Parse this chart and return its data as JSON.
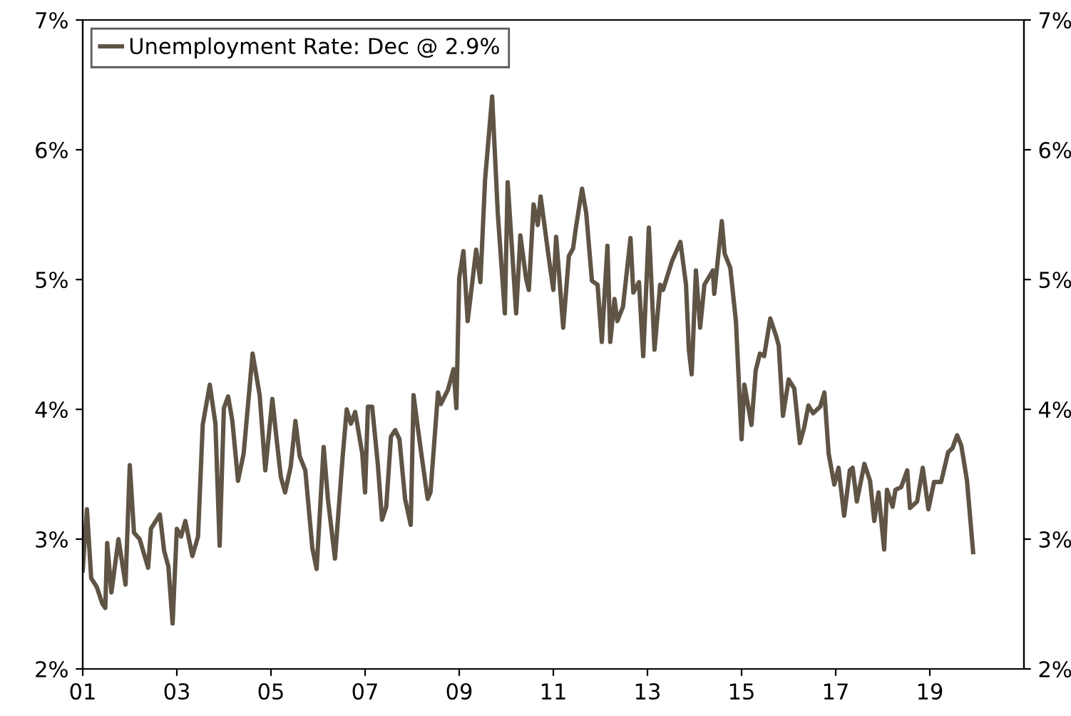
{
  "chart_data": {
    "type": "line",
    "series": [
      {
        "name": "Unemployment Rate: Dec @ 2.9%",
        "color": "#5f5445",
        "x": [
          2001.0,
          2001.09,
          2001.18,
          2001.3,
          2001.42,
          2001.48,
          2001.52,
          2001.61,
          2001.76,
          2001.91,
          2002.0,
          2002.09,
          2002.21,
          2002.39,
          2002.45,
          2002.64,
          2002.73,
          2002.82,
          2002.91,
          2003.0,
          2003.09,
          2003.18,
          2003.33,
          2003.45,
          2003.55,
          2003.7,
          2003.82,
          2003.91,
          2004.0,
          2004.09,
          2004.18,
          2004.3,
          2004.42,
          2004.61,
          2004.76,
          2004.88,
          2005.03,
          2005.12,
          2005.21,
          2005.3,
          2005.42,
          2005.52,
          2005.61,
          2005.73,
          2005.88,
          2005.97,
          2006.12,
          2006.21,
          2006.36,
          2006.52,
          2006.61,
          2006.7,
          2006.79,
          2006.94,
          2007.0,
          2007.06,
          2007.15,
          2007.27,
          2007.36,
          2007.45,
          2007.55,
          2007.64,
          2007.73,
          2007.85,
          2007.97,
          2008.03,
          2008.12,
          2008.21,
          2008.33,
          2008.39,
          2008.55,
          2008.61,
          2008.76,
          2008.88,
          2008.94,
          2009.0,
          2009.09,
          2009.18,
          2009.36,
          2009.45,
          2009.55,
          2009.7,
          2009.82,
          2009.97,
          2010.03,
          2010.21,
          2010.3,
          2010.42,
          2010.48,
          2010.58,
          2010.67,
          2010.73,
          2010.91,
          2011.0,
          2011.06,
          2011.21,
          2011.33,
          2011.42,
          2011.48,
          2011.61,
          2011.7,
          2011.82,
          2011.94,
          2012.03,
          2012.15,
          2012.21,
          2012.3,
          2012.36,
          2012.48,
          2012.64,
          2012.7,
          2012.82,
          2012.91,
          2013.03,
          2013.15,
          2013.27,
          2013.33,
          2013.52,
          2013.7,
          2013.82,
          2013.88,
          2013.94,
          2014.03,
          2014.12,
          2014.21,
          2014.39,
          2014.42,
          2014.58,
          2014.64,
          2014.76,
          2014.88,
          2015.0,
          2015.06,
          2015.21,
          2015.3,
          2015.39,
          2015.48,
          2015.61,
          2015.73,
          2015.79,
          2015.88,
          2016.0,
          2016.12,
          2016.24,
          2016.33,
          2016.42,
          2016.52,
          2016.67,
          2016.76,
          2016.85,
          2016.97,
          2017.06,
          2017.18,
          2017.3,
          2017.36,
          2017.45,
          2017.61,
          2017.73,
          2017.82,
          2017.91,
          2018.03,
          2018.09,
          2018.21,
          2018.27,
          2018.39,
          2018.52,
          2018.58,
          2018.73,
          2018.85,
          2018.97,
          2019.09,
          2019.24,
          2019.39,
          2019.48,
          2019.58,
          2019.67,
          2019.79,
          2019.92
        ],
        "values": [
          2.76,
          3.23,
          2.7,
          2.63,
          2.5,
          2.47,
          2.97,
          2.59,
          3.0,
          2.65,
          3.57,
          3.05,
          3.0,
          2.78,
          3.08,
          3.19,
          2.91,
          2.79,
          2.35,
          3.08,
          3.02,
          3.14,
          2.87,
          3.02,
          3.88,
          4.19,
          3.89,
          2.95,
          4.01,
          4.1,
          3.91,
          3.45,
          3.66,
          4.43,
          4.11,
          3.53,
          4.08,
          3.77,
          3.48,
          3.36,
          3.56,
          3.91,
          3.64,
          3.53,
          2.93,
          2.77,
          3.71,
          3.31,
          2.85,
          3.62,
          4.0,
          3.89,
          3.98,
          3.66,
          3.36,
          4.02,
          4.02,
          3.58,
          3.15,
          3.25,
          3.79,
          3.84,
          3.77,
          3.31,
          3.11,
          4.11,
          3.86,
          3.62,
          3.31,
          3.36,
          4.13,
          4.04,
          4.15,
          4.31,
          4.01,
          5.01,
          5.22,
          4.68,
          5.23,
          4.98,
          5.77,
          6.41,
          5.51,
          4.74,
          5.75,
          4.74,
          5.34,
          5.01,
          4.92,
          5.58,
          5.42,
          5.64,
          5.15,
          4.92,
          5.33,
          4.63,
          5.18,
          5.24,
          5.4,
          5.7,
          5.51,
          4.99,
          4.96,
          4.52,
          5.26,
          4.52,
          4.85,
          4.68,
          4.79,
          5.32,
          4.9,
          4.98,
          4.41,
          5.4,
          4.46,
          4.96,
          4.92,
          5.14,
          5.29,
          4.96,
          4.46,
          4.27,
          5.07,
          4.63,
          4.96,
          5.07,
          4.89,
          5.45,
          5.2,
          5.09,
          4.68,
          3.77,
          4.19,
          3.88,
          4.3,
          4.43,
          4.41,
          4.7,
          4.57,
          4.49,
          3.95,
          4.23,
          4.16,
          3.74,
          3.86,
          4.03,
          3.97,
          4.02,
          4.13,
          3.66,
          3.42,
          3.55,
          3.18,
          3.53,
          3.55,
          3.29,
          3.58,
          3.45,
          3.14,
          3.36,
          2.92,
          3.38,
          3.25,
          3.38,
          3.4,
          3.53,
          3.24,
          3.29,
          3.55,
          3.23,
          3.44,
          3.44,
          3.67,
          3.7,
          3.8,
          3.72,
          3.45,
          2.9
        ]
      }
    ],
    "xlim": [
      2001,
      2021
    ],
    "xticks": [
      {
        "value": 2001,
        "label": "01"
      },
      {
        "value": 2003,
        "label": "03"
      },
      {
        "value": 2005,
        "label": "05"
      },
      {
        "value": 2007,
        "label": "07"
      },
      {
        "value": 2009,
        "label": "09"
      },
      {
        "value": 2011,
        "label": "11"
      },
      {
        "value": 2013,
        "label": "13"
      },
      {
        "value": 2015,
        "label": "15"
      },
      {
        "value": 2017,
        "label": "17"
      },
      {
        "value": 2019,
        "label": "19"
      }
    ],
    "ylim": [
      2,
      7
    ],
    "yticks": [
      {
        "value": 2,
        "label": "2%"
      },
      {
        "value": 3,
        "label": "3%"
      },
      {
        "value": 4,
        "label": "4%"
      },
      {
        "value": 5,
        "label": "5%"
      },
      {
        "value": 6,
        "label": "6%"
      },
      {
        "value": 7,
        "label": "7%"
      }
    ],
    "y2lim": [
      2,
      7
    ],
    "y2ticks": [
      {
        "value": 2,
        "label": "2%"
      },
      {
        "value": 3,
        "label": "3%"
      },
      {
        "value": 4,
        "label": "4%"
      },
      {
        "value": 5,
        "label": "5%"
      },
      {
        "value": 6,
        "label": "6%"
      },
      {
        "value": 7,
        "label": "7%"
      }
    ],
    "legend": "top left",
    "grid": false,
    "marker": "none",
    "line_style": "solid"
  }
}
